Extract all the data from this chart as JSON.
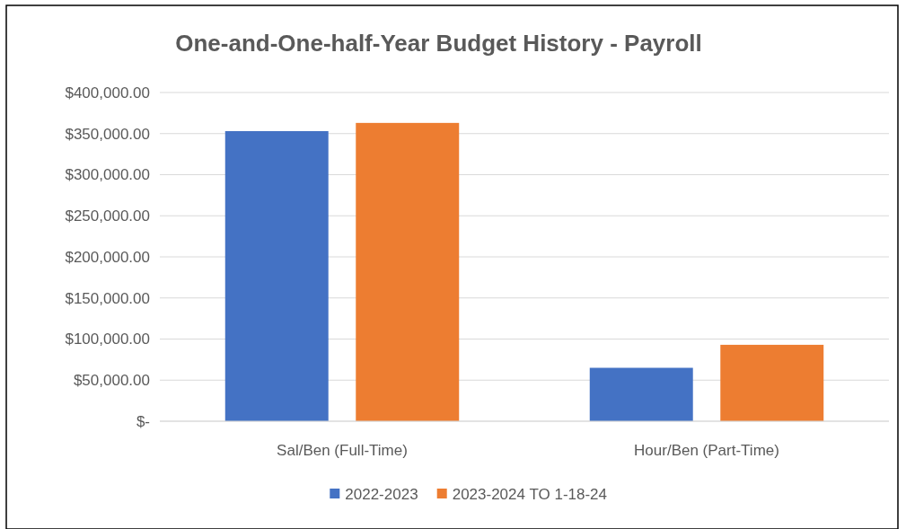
{
  "chart_data": {
    "type": "bar",
    "title": "One-and-One-half-Year Budget History - Payroll",
    "categories": [
      "Sal/Ben (Full-Time)",
      "Hour/Ben (Part-Time)"
    ],
    "series": [
      {
        "name": "2022-2023",
        "color": "#4472c4",
        "values": [
          353000,
          65000
        ]
      },
      {
        "name": "2023-2024 TO 1-18-24",
        "color": "#ed7d31",
        "values": [
          363000,
          93000
        ]
      }
    ],
    "ylim": [
      0,
      400000
    ],
    "yticks": [
      {
        "value": 0,
        "label": "$-"
      },
      {
        "value": 50000,
        "label": "$50,000.00"
      },
      {
        "value": 100000,
        "label": "$100,000.00"
      },
      {
        "value": 150000,
        "label": "$150,000.00"
      },
      {
        "value": 200000,
        "label": "$200,000.00"
      },
      {
        "value": 250000,
        "label": "$250,000.00"
      },
      {
        "value": 300000,
        "label": "$300,000.00"
      },
      {
        "value": 350000,
        "label": "$350,000.00"
      },
      {
        "value": 400000,
        "label": "$400,000.00"
      }
    ],
    "grid": "y",
    "legend": "bottom"
  }
}
